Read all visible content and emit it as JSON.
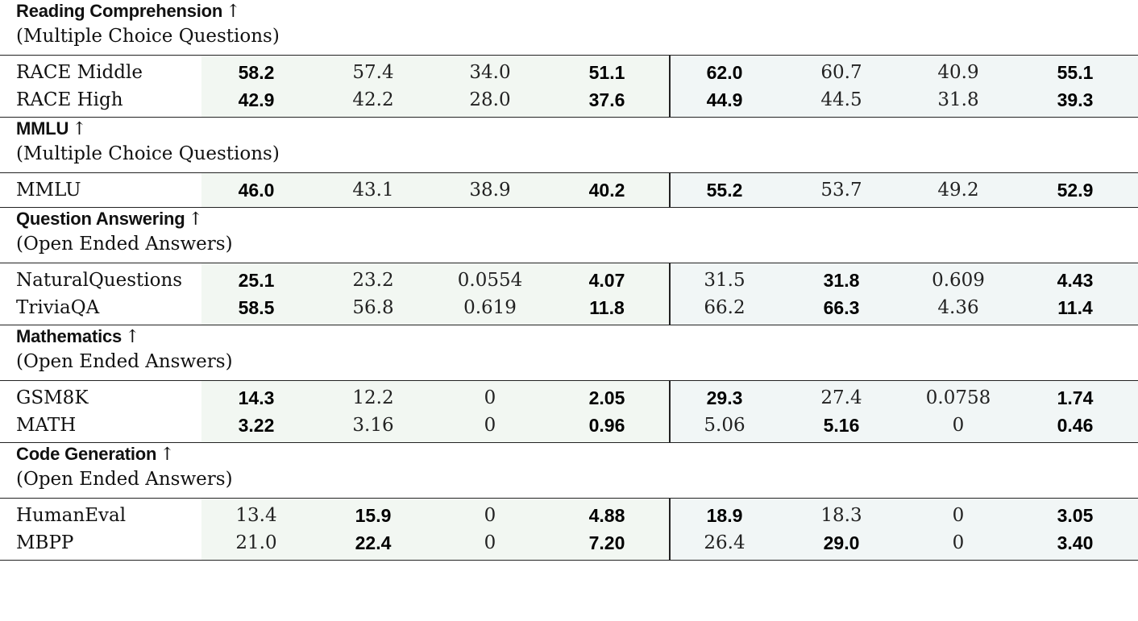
{
  "sections": [
    {
      "title": "Reading Comprehension",
      "arrow": "↑",
      "subtitle": "(Multiple Choice Questions)",
      "rows": [
        {
          "label": "RACE Middle",
          "cells": [
            {
              "v": "58.2",
              "b": true
            },
            {
              "v": "57.4",
              "b": false
            },
            {
              "v": "34.0",
              "b": false
            },
            {
              "v": "51.1",
              "b": true
            },
            {
              "v": "62.0",
              "b": true
            },
            {
              "v": "60.7",
              "b": false
            },
            {
              "v": "40.9",
              "b": false
            },
            {
              "v": "55.1",
              "b": true
            }
          ]
        },
        {
          "label": "RACE High",
          "cells": [
            {
              "v": "42.9",
              "b": true
            },
            {
              "v": "42.2",
              "b": false
            },
            {
              "v": "28.0",
              "b": false
            },
            {
              "v": "37.6",
              "b": true
            },
            {
              "v": "44.9",
              "b": true
            },
            {
              "v": "44.5",
              "b": false
            },
            {
              "v": "31.8",
              "b": false
            },
            {
              "v": "39.3",
              "b": true
            }
          ]
        }
      ]
    },
    {
      "title": "MMLU",
      "arrow": "↑",
      "subtitle": "(Multiple Choice Questions)",
      "rows": [
        {
          "label": "MMLU",
          "cells": [
            {
              "v": "46.0",
              "b": true
            },
            {
              "v": "43.1",
              "b": false
            },
            {
              "v": "38.9",
              "b": false
            },
            {
              "v": "40.2",
              "b": true
            },
            {
              "v": "55.2",
              "b": true
            },
            {
              "v": "53.7",
              "b": false
            },
            {
              "v": "49.2",
              "b": false
            },
            {
              "v": "52.9",
              "b": true
            }
          ]
        }
      ]
    },
    {
      "title": "Question Answering",
      "arrow": "↑",
      "subtitle": "(Open Ended Answers)",
      "rows": [
        {
          "label": "NaturalQuestions",
          "cells": [
            {
              "v": "25.1",
              "b": true
            },
            {
              "v": "23.2",
              "b": false
            },
            {
              "v": "0.0554",
              "b": false
            },
            {
              "v": "4.07",
              "b": true
            },
            {
              "v": "31.5",
              "b": false
            },
            {
              "v": "31.8",
              "b": true
            },
            {
              "v": "0.609",
              "b": false
            },
            {
              "v": "4.43",
              "b": true
            }
          ]
        },
        {
          "label": "TriviaQA",
          "cells": [
            {
              "v": "58.5",
              "b": true
            },
            {
              "v": "56.8",
              "b": false
            },
            {
              "v": "0.619",
              "b": false
            },
            {
              "v": "11.8",
              "b": true
            },
            {
              "v": "66.2",
              "b": false
            },
            {
              "v": "66.3",
              "b": true
            },
            {
              "v": "4.36",
              "b": false
            },
            {
              "v": "11.4",
              "b": true
            }
          ]
        }
      ]
    },
    {
      "title": "Mathematics",
      "arrow": "↑",
      "subtitle": "(Open Ended Answers)",
      "rows": [
        {
          "label": "GSM8K",
          "cells": [
            {
              "v": "14.3",
              "b": true
            },
            {
              "v": "12.2",
              "b": false
            },
            {
              "v": "0",
              "b": false
            },
            {
              "v": "2.05",
              "b": true
            },
            {
              "v": "29.3",
              "b": true
            },
            {
              "v": "27.4",
              "b": false
            },
            {
              "v": "0.0758",
              "b": false
            },
            {
              "v": "1.74",
              "b": true
            }
          ]
        },
        {
          "label": "MATH",
          "cells": [
            {
              "v": "3.22",
              "b": true
            },
            {
              "v": "3.16",
              "b": false
            },
            {
              "v": "0",
              "b": false
            },
            {
              "v": "0.96",
              "b": true
            },
            {
              "v": "5.06",
              "b": false
            },
            {
              "v": "5.16",
              "b": true
            },
            {
              "v": "0",
              "b": false
            },
            {
              "v": "0.46",
              "b": true
            }
          ]
        }
      ]
    },
    {
      "title": "Code Generation",
      "arrow": "↑",
      "subtitle": "(Open Ended Answers)",
      "rows": [
        {
          "label": "HumanEval",
          "cells": [
            {
              "v": "13.4",
              "b": false
            },
            {
              "v": "15.9",
              "b": true
            },
            {
              "v": "0",
              "b": false
            },
            {
              "v": "4.88",
              "b": true
            },
            {
              "v": "18.9",
              "b": true
            },
            {
              "v": "18.3",
              "b": false
            },
            {
              "v": "0",
              "b": false
            },
            {
              "v": "3.05",
              "b": true
            }
          ]
        },
        {
          "label": "MBPP",
          "cells": [
            {
              "v": "21.0",
              "b": false
            },
            {
              "v": "22.4",
              "b": true
            },
            {
              "v": "0",
              "b": false
            },
            {
              "v": "7.20",
              "b": true
            },
            {
              "v": "26.4",
              "b": false
            },
            {
              "v": "29.0",
              "b": true
            },
            {
              "v": "0",
              "b": false
            },
            {
              "v": "3.40",
              "b": true
            }
          ]
        }
      ]
    }
  ]
}
